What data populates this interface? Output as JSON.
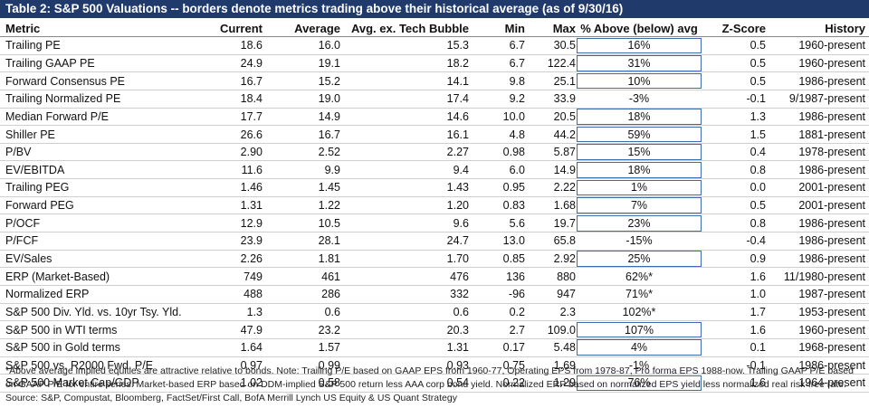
{
  "title": "Table 2: S&P 500 Valuations -- borders denote metrics trading above their historical average (as of 9/30/16)",
  "columns": [
    "Metric",
    "Current",
    "Average",
    "Avg. ex. Tech Bubble",
    "Min",
    "Max",
    "% Above (below) avg",
    "Z-Score",
    "History"
  ],
  "rows": [
    {
      "metric": "Trailing PE",
      "current": "18.6",
      "average": "16.0",
      "avg_ex": "15.3",
      "min": "6.7",
      "max": "30.5",
      "pct": "16%",
      "z": "0.5",
      "history": "1960-present",
      "boxed": true
    },
    {
      "metric": "Trailing GAAP PE",
      "current": "24.9",
      "average": "19.1",
      "avg_ex": "18.2",
      "min": "6.7",
      "max": "122.4",
      "pct": "31%",
      "z": "0.5",
      "history": "1960-present",
      "boxed": true
    },
    {
      "metric": "Forward Consensus PE",
      "current": "16.7",
      "average": "15.2",
      "avg_ex": "14.1",
      "min": "9.8",
      "max": "25.1",
      "pct": "10%",
      "z": "0.5",
      "history": "1986-present",
      "boxed": true
    },
    {
      "metric": "Trailing Normalized PE",
      "current": "18.4",
      "average": "19.0",
      "avg_ex": "17.4",
      "min": "9.2",
      "max": "33.9",
      "pct": "-3%",
      "z": "-0.1",
      "history": "9/1987-present",
      "boxed": false
    },
    {
      "metric": "Median Forward P/E",
      "current": "17.7",
      "average": "14.9",
      "avg_ex": "14.6",
      "min": "10.0",
      "max": "20.5",
      "pct": "18%",
      "z": "1.3",
      "history": "1986-present",
      "boxed": true
    },
    {
      "metric": "Shiller PE",
      "current": "26.6",
      "average": "16.7",
      "avg_ex": "16.1",
      "min": "4.8",
      "max": "44.2",
      "pct": "59%",
      "z": "1.5",
      "history": "1881-present",
      "boxed": true
    },
    {
      "metric": "P/BV",
      "current": "2.90",
      "average": "2.52",
      "avg_ex": "2.27",
      "min": "0.98",
      "max": "5.87",
      "pct": "15%",
      "z": "0.4",
      "history": "1978-present",
      "boxed": true
    },
    {
      "metric": "EV/EBITDA",
      "current": "11.6",
      "average": "9.9",
      "avg_ex": "9.4",
      "min": "6.0",
      "max": "14.9",
      "pct": "18%",
      "z": "0.8",
      "history": "1986-present",
      "boxed": true
    },
    {
      "metric": "Trailing PEG",
      "current": "1.46",
      "average": "1.45",
      "avg_ex": "1.43",
      "min": "0.95",
      "max": "2.22",
      "pct": "1%",
      "z": "0.0",
      "history": "2001-present",
      "boxed": true
    },
    {
      "metric": "Forward PEG",
      "current": "1.31",
      "average": "1.22",
      "avg_ex": "1.20",
      "min": "0.83",
      "max": "1.68",
      "pct": "7%",
      "z": "0.5",
      "history": "2001-present",
      "boxed": true
    },
    {
      "metric": "P/OCF",
      "current": "12.9",
      "average": "10.5",
      "avg_ex": "9.6",
      "min": "5.6",
      "max": "19.7",
      "pct": "23%",
      "z": "0.8",
      "history": "1986-present",
      "boxed": true
    },
    {
      "metric": "P/FCF",
      "current": "23.9",
      "average": "28.1",
      "avg_ex": "24.7",
      "min": "13.0",
      "max": "65.8",
      "pct": "-15%",
      "z": "-0.4",
      "history": "1986-present",
      "boxed": false
    },
    {
      "metric": "EV/Sales",
      "current": "2.26",
      "average": "1.81",
      "avg_ex": "1.70",
      "min": "0.85",
      "max": "2.92",
      "pct": "25%",
      "z": "0.9",
      "history": "1986-present",
      "boxed": true
    },
    {
      "metric": "ERP (Market-Based)",
      "current": "749",
      "average": "461",
      "avg_ex": "476",
      "min": "136",
      "max": "880",
      "pct": "62%*",
      "z": "1.6",
      "history": "11/1980-present",
      "boxed": false
    },
    {
      "metric": "Normalized ERP",
      "current": "488",
      "average": "286",
      "avg_ex": "332",
      "min": "-96",
      "max": "947",
      "pct": "71%*",
      "z": "1.0",
      "history": "1987-present",
      "boxed": false
    },
    {
      "metric": "S&P 500 Div. Yld. vs. 10yr Tsy. Yld.",
      "current": "1.3",
      "average": "0.6",
      "avg_ex": "0.6",
      "min": "0.2",
      "max": "2.3",
      "pct": "102%*",
      "z": "1.7",
      "history": "1953-present",
      "boxed": false
    },
    {
      "metric": "S&P 500 in WTI terms",
      "current": "47.9",
      "average": "23.2",
      "avg_ex": "20.3",
      "min": "2.7",
      "max": "109.0",
      "pct": "107%",
      "z": "1.6",
      "history": "1960-present",
      "boxed": true
    },
    {
      "metric": "S&P 500 in Gold terms",
      "current": "1.64",
      "average": "1.57",
      "avg_ex": "1.31",
      "min": "0.17",
      "max": "5.48",
      "pct": "4%",
      "z": "0.1",
      "history": "1968-present",
      "boxed": true
    },
    {
      "metric": "S&P 500 vs. R2000 Fwd. P/E",
      "current": "0.97",
      "average": "0.99",
      "avg_ex": "0.93",
      "min": "0.75",
      "max": "1.69",
      "pct": "-1%",
      "z": "-0.1",
      "history": "1986-present",
      "boxed": false
    },
    {
      "metric": "S&P 500 Market Cap/GDP",
      "current": "1.02",
      "average": "0.58",
      "avg_ex": "0.54",
      "min": "0.22",
      "max": "1.29",
      "pct": "76%",
      "z": "1.6",
      "history": "1964-present",
      "boxed": true
    }
  ],
  "footnote": "*Above  average implied equities are attractive relative to bonds.  Note: Trailing P/E based on GAAP EPS from 1960-77, Operating EPS from 1978-87, Pro forma EPS 1988-now. Trailing GAAP P/E based on GAAP P/E for entire series. Market-based ERP based on DDM-implied S&P 500 return less AAA corp bond yield. Normalized ERP based on normalized EPS yield less normalized real risk-free rate.",
  "source": "Source: S&P, Compustat, Bloomberg, FactSet/First Call, BofA Merrill Lynch US Equity & US Quant Strategy"
}
